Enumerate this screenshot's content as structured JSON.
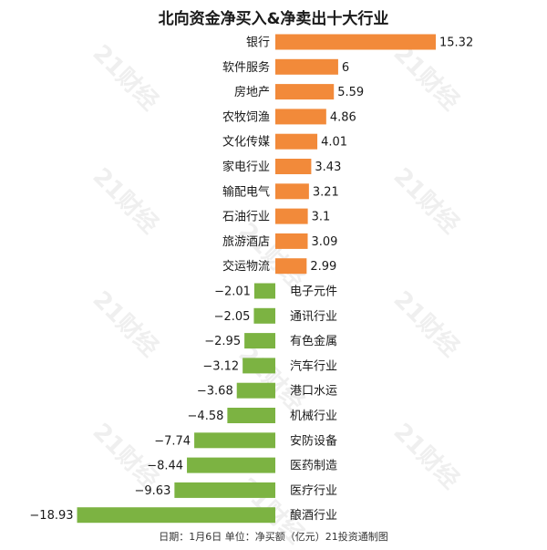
{
  "title": "北向资金净买入&净卖出十大行业",
  "footer": "日期：1月6日 单位：净买额（亿元）21投资通制图",
  "watermark": "21财经",
  "colors": {
    "positive": "#f28a3a",
    "negative": "#7cb342"
  },
  "chart_data": {
    "type": "bar",
    "orientation": "horizontal",
    "title": "北向资金净买入&净卖出十大行业",
    "categories": [
      "银行",
      "软件服务",
      "房地产",
      "农牧饲渔",
      "文化传媒",
      "家电行业",
      "输配电气",
      "石油行业",
      "旅游酒店",
      "交运物流",
      "电子元件",
      "通讯行业",
      "有色金属",
      "汽车行业",
      "港口水运",
      "机械行业",
      "安防设备",
      "医药制造",
      "医疗行业",
      "酿酒行业"
    ],
    "values": [
      15.32,
      6,
      5.59,
      4.86,
      4.01,
      3.43,
      3.21,
      3.1,
      3.09,
      2.99,
      -2.01,
      -2.05,
      -2.95,
      -3.12,
      -3.68,
      -4.58,
      -7.74,
      -8.44,
      -9.63,
      -18.93
    ],
    "value_labels": [
      "15.32",
      "6",
      "5.59",
      "4.86",
      "4.01",
      "3.43",
      "3.21",
      "3.1",
      "3.09",
      "2.99",
      "−2.01",
      "−2.05",
      "−2.95",
      "−3.12",
      "−3.68",
      "−4.58",
      "−7.74",
      "−8.44",
      "−9.63",
      "−18.93"
    ],
    "xlim": [
      -18.93,
      15.32
    ],
    "unit": "亿元"
  }
}
